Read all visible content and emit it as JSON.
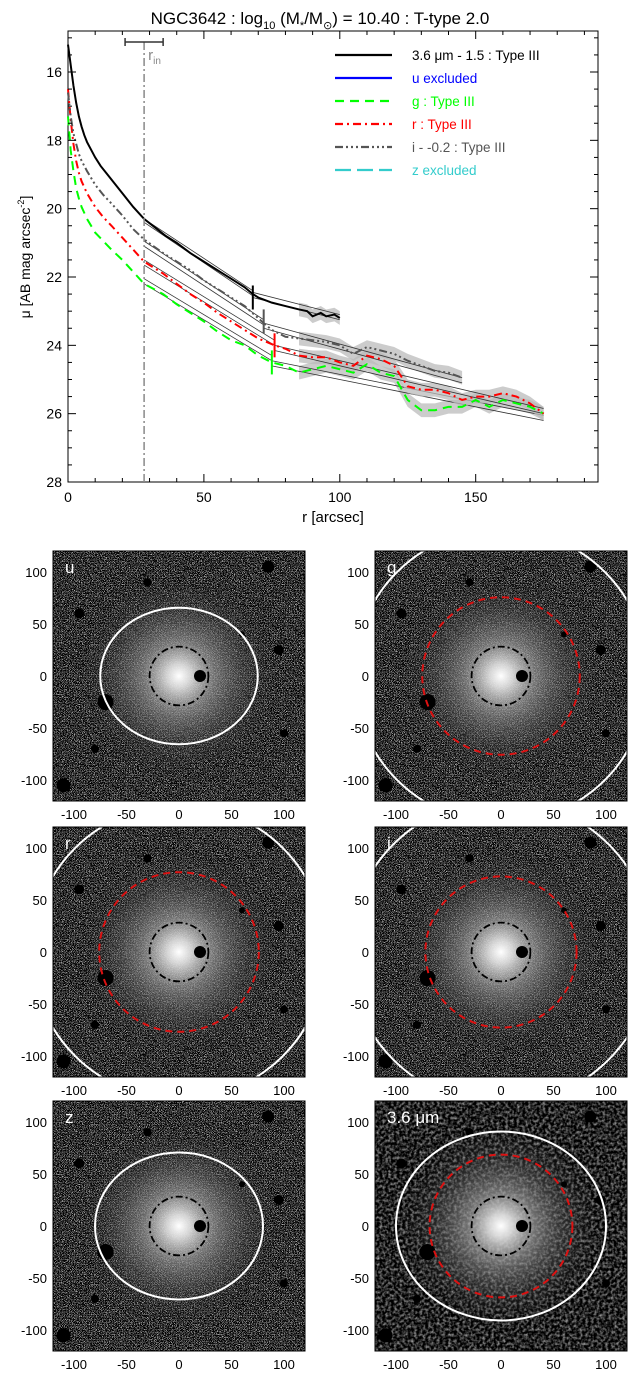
{
  "figure": {
    "title": "NGC3642 : log10 (M*/M⊙) = 10.40 : T-type 2.0",
    "title_parts": {
      "prefix": "NGC3642 : log",
      "sub1": "10",
      "mid": " (M",
      "sub2": "*",
      "mid2": "/M",
      "sub3": "⊙",
      "suffix": ") = 10.40 : T-type 2.0"
    }
  },
  "chart_data": [
    {
      "type": "line",
      "xlabel": "r [arcsec]",
      "ylabel": "μ [AB mag arcsec⁻²]",
      "ylabel_main": "μ [AB mag arcsec",
      "ylabel_sup": "-2",
      "ylabel_end": "]",
      "xlim": [
        0,
        195
      ],
      "ylim": [
        28,
        14.8
      ],
      "y_inverted": true,
      "x_ticks": [
        0,
        50,
        100,
        150
      ],
      "y_ticks": [
        16,
        18,
        20,
        22,
        24,
        26,
        28
      ],
      "rin": {
        "label": "r",
        "label_sub": "in",
        "value": 28,
        "err": [
          21,
          35
        ]
      },
      "legend_position": "top-right",
      "series": [
        {
          "name": "3.6 μm - 1.5 : Type III",
          "color": "#000000",
          "dash": "solid",
          "break": 68,
          "break_mu": 22.6,
          "x": [
            0,
            1,
            2,
            3,
            4,
            5,
            6,
            7,
            8,
            10,
            12,
            14,
            17,
            20,
            24,
            28,
            32,
            36,
            40,
            45,
            50,
            55,
            60,
            65,
            68,
            70,
            75,
            80,
            85,
            88,
            90,
            93,
            95,
            98,
            100
          ],
          "y": [
            15.2,
            15.8,
            16.4,
            16.9,
            17.3,
            17.6,
            17.85,
            18.05,
            18.2,
            18.5,
            18.75,
            18.95,
            19.25,
            19.55,
            19.95,
            20.3,
            20.55,
            20.8,
            21.0,
            21.3,
            21.55,
            21.8,
            22.05,
            22.3,
            22.5,
            22.6,
            22.75,
            22.85,
            22.95,
            23.0,
            23.15,
            23.05,
            23.15,
            23.1,
            23.2
          ],
          "fits": [
            {
              "x": [
                28,
                68
              ],
              "y": [
                20.3,
                22.4
              ]
            },
            {
              "x": [
                28,
                68
              ],
              "y": [
                20.4,
                22.55
              ]
            },
            {
              "x": [
                68,
                100
              ],
              "y": [
                22.45,
                23.1
              ]
            },
            {
              "x": [
                68,
                100
              ],
              "y": [
                22.6,
                23.25
              ]
            }
          ]
        },
        {
          "name": "u excluded",
          "color": "#0000ff",
          "dash": "solid",
          "x": [],
          "y": []
        },
        {
          "name": "g : Type III",
          "color": "#00ff00",
          "dash": "dashed",
          "break": 75,
          "break_mu": 24.5,
          "x": [
            0,
            1,
            2,
            3,
            4,
            5,
            7,
            10,
            13,
            16,
            20,
            24,
            28,
            35,
            40,
            45,
            50,
            55,
            60,
            65,
            70,
            75,
            80,
            85,
            90,
            95,
            100,
            105,
            110,
            115,
            120,
            125,
            130,
            135,
            140,
            145,
            150,
            155,
            160,
            165,
            170,
            175
          ],
          "y": [
            17.3,
            18.3,
            18.9,
            19.4,
            19.7,
            19.95,
            20.3,
            20.7,
            20.95,
            21.2,
            21.5,
            21.85,
            22.2,
            22.5,
            22.8,
            23.05,
            23.3,
            23.6,
            23.85,
            24.0,
            24.3,
            24.5,
            24.6,
            24.8,
            24.7,
            24.6,
            24.7,
            24.8,
            24.55,
            24.8,
            24.9,
            25.6,
            25.9,
            25.9,
            25.8,
            25.8,
            25.6,
            25.8,
            25.6,
            25.7,
            25.8,
            26.0
          ],
          "fits": [
            {
              "x": [
                28,
                75
              ],
              "y": [
                22.05,
                24.3
              ]
            },
            {
              "x": [
                28,
                75
              ],
              "y": [
                22.2,
                24.45
              ]
            },
            {
              "x": [
                75,
                175
              ],
              "y": [
                24.45,
                26.05
              ]
            },
            {
              "x": [
                75,
                175
              ],
              "y": [
                24.6,
                26.2
              ]
            }
          ]
        },
        {
          "name": "r : Type III",
          "color": "#ff0000",
          "dash": "dashdot",
          "break": 76,
          "break_mu": 24.0,
          "x": [
            0,
            1,
            2,
            3,
            4,
            5,
            7,
            10,
            13,
            16,
            20,
            24,
            28,
            35,
            40,
            45,
            50,
            55,
            60,
            65,
            70,
            76,
            80,
            85,
            90,
            95,
            100,
            105,
            110,
            115,
            120,
            125,
            130,
            135,
            140,
            145,
            150,
            155,
            160,
            165,
            170,
            175
          ],
          "y": [
            16.5,
            17.4,
            18.1,
            18.6,
            18.95,
            19.2,
            19.55,
            19.95,
            20.25,
            20.5,
            20.85,
            21.2,
            21.55,
            21.9,
            22.2,
            22.5,
            22.75,
            23.05,
            23.3,
            23.55,
            23.8,
            24.0,
            24.1,
            24.3,
            24.35,
            24.35,
            24.5,
            24.6,
            24.3,
            24.4,
            24.6,
            25.2,
            25.3,
            25.3,
            25.4,
            25.6,
            25.5,
            25.5,
            25.4,
            25.5,
            25.7,
            26.0
          ],
          "fits": [
            {
              "x": [
                28,
                76
              ],
              "y": [
                21.5,
                23.85
              ]
            },
            {
              "x": [
                28,
                76
              ],
              "y": [
                21.65,
                24.0
              ]
            },
            {
              "x": [
                76,
                175
              ],
              "y": [
                24.0,
                25.85
              ]
            },
            {
              "x": [
                76,
                175
              ],
              "y": [
                24.15,
                26.0
              ]
            }
          ]
        },
        {
          "name": "i - -0.2 : Type III",
          "color": "#555555",
          "dash": "dashdotdotdot",
          "break": 72,
          "break_mu": 23.3,
          "x": [
            0,
            1,
            2,
            3,
            4,
            5,
            7,
            10,
            13,
            16,
            20,
            24,
            28,
            35,
            40,
            45,
            50,
            55,
            60,
            65,
            72,
            75,
            80,
            85,
            90,
            95,
            100,
            105,
            110,
            115,
            120,
            125,
            130,
            135,
            140,
            145
          ],
          "y": [
            16.6,
            17.3,
            17.8,
            18.1,
            18.4,
            18.6,
            18.9,
            19.3,
            19.6,
            19.85,
            20.2,
            20.6,
            20.9,
            21.3,
            21.55,
            21.8,
            22.1,
            22.35,
            22.6,
            22.85,
            23.35,
            23.55,
            23.75,
            23.8,
            23.85,
            23.9,
            24.0,
            24.25,
            24.05,
            24.15,
            24.25,
            24.45,
            24.6,
            24.75,
            24.8,
            24.95
          ],
          "fits": [
            {
              "x": [
                28,
                72
              ],
              "y": [
                20.95,
                23.25
              ]
            },
            {
              "x": [
                28,
                72
              ],
              "y": [
                21.1,
                23.4
              ]
            },
            {
              "x": [
                72,
                145
              ],
              "y": [
                23.35,
                24.95
              ]
            },
            {
              "x": [
                72,
                145
              ],
              "y": [
                23.5,
                25.1
              ]
            }
          ]
        },
        {
          "name": "z excluded",
          "color": "#33cccc",
          "dash": "longdash",
          "x": [],
          "y": []
        }
      ]
    },
    {
      "type": "image-panels",
      "axis_ticks": [
        -100,
        -50,
        0,
        50,
        100
      ],
      "extent": [
        -120,
        120
      ],
      "panels": [
        {
          "label": "u",
          "ellipse": "white",
          "ellipse_a": 75,
          "ellipse_b": 65,
          "red_circle": false,
          "rin": 28,
          "bg": "noise"
        },
        {
          "label": "g",
          "ellipse": "white",
          "ellipse_a": 140,
          "ellipse_b": 140,
          "red_circle": true,
          "red_r": 75,
          "rin": 28,
          "bg": "noise"
        },
        {
          "label": "r",
          "ellipse": "white",
          "ellipse_a": 140,
          "ellipse_b": 140,
          "red_circle": true,
          "red_r": 76,
          "rin": 28,
          "bg": "noise"
        },
        {
          "label": "i",
          "ellipse": "white",
          "ellipse_a": 145,
          "ellipse_b": 145,
          "red_circle": true,
          "red_r": 72,
          "rin": 28,
          "bg": "noise"
        },
        {
          "label": "z",
          "ellipse": "white",
          "ellipse_a": 80,
          "ellipse_b": 70,
          "red_circle": false,
          "rin": 28,
          "bg": "noise"
        },
        {
          "label": "3.6 μm",
          "ellipse": "white",
          "ellipse_a": 100,
          "ellipse_b": 90,
          "red_circle": true,
          "red_r": 68,
          "rin": 28,
          "bg": "smooth"
        }
      ]
    }
  ]
}
